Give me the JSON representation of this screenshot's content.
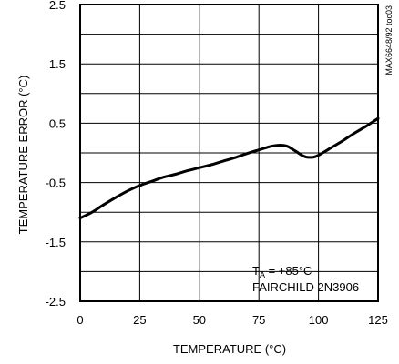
{
  "chart_data": {
    "type": "line",
    "title": "",
    "xlabel": "TEMPERATURE (°C)",
    "ylabel": "TEMPERATURE ERROR (°C)",
    "xlim": [
      0,
      125
    ],
    "ylim": [
      -2.5,
      2.5
    ],
    "x_ticks": [
      "0",
      "25",
      "50",
      "75",
      "100",
      "125"
    ],
    "y_ticks": [
      "2.5",
      "1.5",
      "0.5",
      "-0.5",
      "-1.5",
      "-2.5"
    ],
    "grid": true,
    "series": [
      {
        "x": [
          0,
          5,
          10,
          15,
          20,
          25,
          30,
          35,
          40,
          45,
          50,
          55,
          60,
          65,
          70,
          75,
          80,
          84,
          87,
          90,
          93,
          95,
          98,
          100,
          105,
          110,
          115,
          120,
          125
        ],
        "y": [
          -1.1,
          -1.0,
          -0.87,
          -0.75,
          -0.64,
          -0.55,
          -0.48,
          -0.41,
          -0.36,
          -0.3,
          -0.25,
          -0.2,
          -0.14,
          -0.08,
          -0.01,
          0.05,
          0.11,
          0.13,
          0.11,
          0.04,
          -0.04,
          -0.07,
          -0.07,
          -0.04,
          0.08,
          0.2,
          0.33,
          0.45,
          0.58
        ]
      }
    ],
    "annotations": {
      "ta_prefix": "T",
      "ta_sub": "A",
      "ta_value": " = +85°C",
      "device": "FAIRCHILD 2N3906"
    },
    "figure_id": "MAX6648/92 toc03"
  }
}
